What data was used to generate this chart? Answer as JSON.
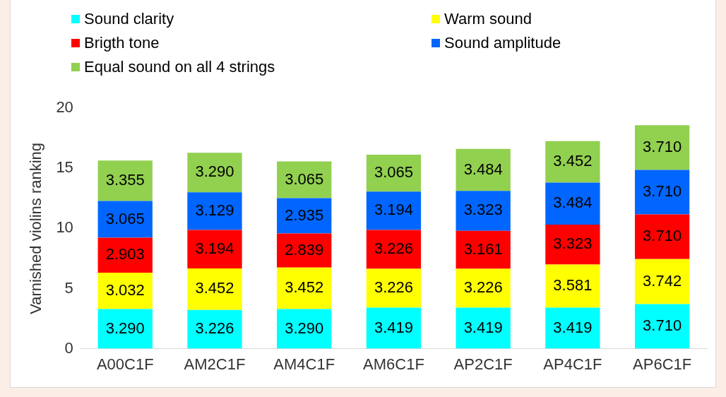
{
  "chart_data": {
    "type": "bar",
    "stacked": true,
    "ylabel": "Varnished violins ranking",
    "categories": [
      "A00C1F",
      "AM2C1F",
      "AM4C1F",
      "AM6C1F",
      "AP2C1F",
      "AP4C1F",
      "AP6C1F"
    ],
    "series": [
      {
        "name": "Sound clarity",
        "color": "#00ffff",
        "values": [
          3.29,
          3.226,
          3.29,
          3.419,
          3.419,
          3.419,
          3.71
        ],
        "value_labels": [
          "3.290",
          "3.226",
          "3.290",
          "3.419",
          "3.419",
          "3.419",
          "3.710"
        ]
      },
      {
        "name": "Warm sound",
        "color": "#ffff00",
        "values": [
          3.032,
          3.452,
          3.452,
          3.226,
          3.226,
          3.581,
          3.742
        ],
        "value_labels": [
          "3.032",
          "3.452",
          "3.452",
          "3.226",
          "3.226",
          "3.581",
          "3.742"
        ]
      },
      {
        "name": "Brigth tone",
        "color": "#ff0000",
        "values": [
          2.903,
          3.194,
          2.839,
          3.226,
          3.161,
          3.323,
          3.71
        ],
        "value_labels": [
          "2.903",
          "3.194",
          "2.839",
          "3.226",
          "3.161",
          "3.323",
          "3.710"
        ]
      },
      {
        "name": "Sound amplitude",
        "color": "#0066ff",
        "values": [
          3.065,
          3.129,
          2.935,
          3.194,
          3.323,
          3.484,
          3.71
        ],
        "value_labels": [
          "3.065",
          "3.129",
          "2.935",
          "3.194",
          "3.323",
          "3.484",
          "3.710"
        ]
      },
      {
        "name": "Equal sound on all 4 strings",
        "color": "#92d050",
        "values": [
          3.355,
          3.29,
          3.065,
          3.065,
          3.484,
          3.452,
          3.71
        ],
        "value_labels": [
          "3.355",
          "3.290",
          "3.065",
          "3.065",
          "3.484",
          "3.452",
          "3.710"
        ]
      }
    ],
    "ylim": [
      0,
      20
    ],
    "yticks": [
      0,
      5,
      10,
      15,
      20
    ],
    "grid": false,
    "legend": "top"
  }
}
